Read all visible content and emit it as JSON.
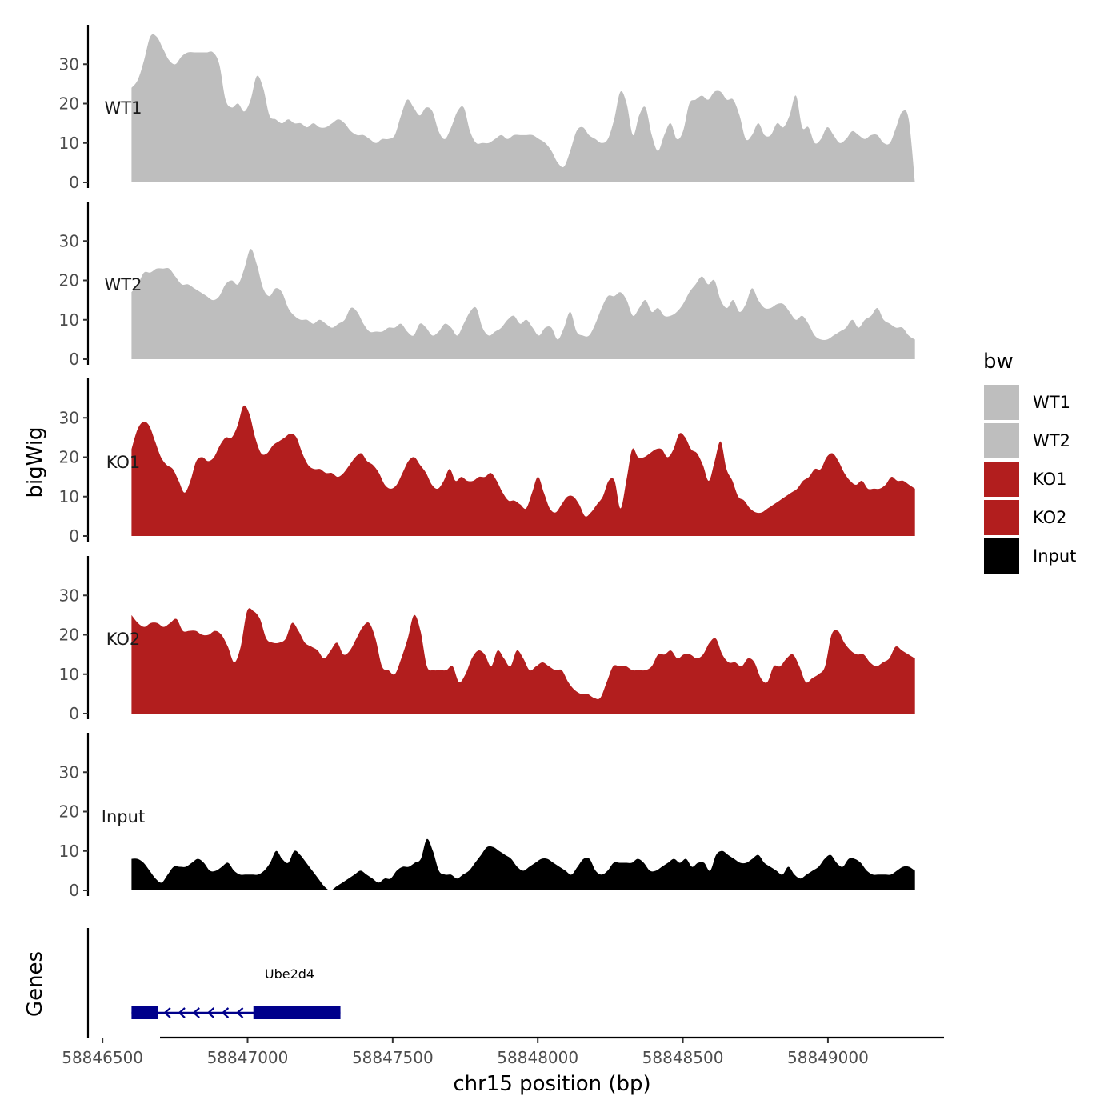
{
  "chart_data": {
    "type": "area",
    "ylabel": "bigWig",
    "xlabel": "chr15 position (bp)",
    "x_range": [
      58846600,
      58849300
    ],
    "xlim": [
      58846450,
      58849400
    ],
    "x_ticks": [
      58846500,
      58847000,
      58847500,
      58848000,
      58848500,
      58849000
    ],
    "x_tick_labels": [
      "58846500",
      "58847000",
      "58847500",
      "58848000",
      "58848500",
      "58849000"
    ],
    "ylim": [
      0,
      40
    ],
    "y_ticks": [
      0,
      10,
      20,
      30
    ],
    "y_tick_labels": [
      "0",
      "10",
      "20",
      "30"
    ],
    "legend": {
      "title": "bw",
      "position": "right",
      "entries": [
        {
          "label": "WT1",
          "color": "#bebebe"
        },
        {
          "label": "WT2",
          "color": "#bebebe"
        },
        {
          "label": "KO1",
          "color": "#b21e1e"
        },
        {
          "label": "KO2",
          "color": "#b21e1e"
        },
        {
          "label": "Input",
          "color": "#000000"
        }
      ]
    },
    "series": [
      {
        "name": "WT1",
        "color": "#bebebe",
        "values": [
          24,
          26,
          31,
          37,
          37,
          34,
          31,
          30,
          32,
          33,
          33,
          33,
          33,
          33,
          30,
          21,
          19,
          20,
          18,
          21,
          27,
          24,
          17,
          16,
          15,
          16,
          15,
          15,
          14,
          15,
          14,
          14,
          15,
          16,
          15,
          13,
          12,
          12,
          11,
          10,
          11,
          11,
          12,
          17,
          21,
          19,
          17,
          19,
          18,
          13,
          11,
          14,
          18,
          19,
          13,
          10,
          10,
          10,
          11,
          12,
          11,
          12,
          12,
          12,
          12,
          11,
          10,
          8,
          5,
          4,
          8,
          13,
          14,
          12,
          11,
          10,
          11,
          16,
          23,
          20,
          12,
          17,
          19,
          12,
          8,
          12,
          15,
          11,
          13,
          20,
          21,
          22,
          21,
          23,
          23,
          21,
          21,
          17,
          11,
          12,
          15,
          12,
          12,
          15,
          14,
          17,
          22,
          14,
          14,
          10,
          11,
          14,
          12,
          10,
          11,
          13,
          12,
          11,
          12,
          12,
          10,
          10,
          14,
          18,
          16,
          0
        ]
      },
      {
        "name": "WT2",
        "color": "#bebebe",
        "values": [
          17,
          19,
          22,
          22,
          23,
          23,
          23,
          21,
          19,
          19,
          18,
          17,
          16,
          15,
          16,
          19,
          20,
          19,
          23,
          28,
          24,
          18,
          16,
          18,
          17,
          13,
          11,
          10,
          10,
          9,
          10,
          9,
          8,
          9,
          10,
          13,
          12,
          9,
          7,
          7,
          7,
          8,
          8,
          9,
          7,
          6,
          9,
          8,
          6,
          7,
          9,
          8,
          6,
          9,
          12,
          13,
          8,
          6,
          7,
          8,
          10,
          11,
          9,
          10,
          8,
          6,
          8,
          8,
          5,
          8,
          12,
          7,
          6,
          6,
          9,
          13,
          16,
          16,
          17,
          15,
          11,
          13,
          15,
          12,
          13,
          11,
          11,
          12,
          14,
          17,
          19,
          21,
          19,
          20,
          15,
          13,
          15,
          12,
          14,
          18,
          15,
          13,
          13,
          14,
          14,
          12,
          10,
          11,
          9,
          6,
          5,
          5,
          6,
          7,
          8,
          10,
          8,
          10,
          11,
          13,
          10,
          9,
          8,
          8,
          6,
          5
        ]
      },
      {
        "name": "KO1",
        "color": "#b21e1e",
        "values": [
          22,
          27,
          29,
          28,
          24,
          20,
          18,
          17,
          14,
          11,
          14,
          19,
          20,
          19,
          20,
          23,
          25,
          25,
          28,
          33,
          31,
          25,
          21,
          21,
          23,
          24,
          25,
          26,
          25,
          21,
          18,
          17,
          17,
          16,
          16,
          15,
          16,
          18,
          20,
          21,
          19,
          18,
          16,
          13,
          12,
          13,
          16,
          19,
          20,
          18,
          16,
          13,
          12,
          14,
          17,
          14,
          15,
          14,
          14,
          15,
          15,
          16,
          14,
          11,
          9,
          9,
          8,
          7,
          11,
          15,
          11,
          7,
          6,
          8,
          10,
          10,
          8,
          5,
          6,
          8,
          10,
          14,
          14,
          7,
          14,
          22,
          20,
          20,
          21,
          22,
          22,
          20,
          22,
          26,
          25,
          22,
          21,
          18,
          14,
          19,
          24,
          17,
          14,
          10,
          9,
          7,
          6,
          6,
          7,
          8,
          9,
          10,
          11,
          12,
          14,
          15,
          17,
          17,
          20,
          21,
          19,
          16,
          14,
          13,
          14,
          12,
          12,
          12,
          13,
          15,
          14,
          14,
          13,
          12
        ]
      },
      {
        "name": "KO2",
        "color": "#b21e1e",
        "values": [
          25,
          23,
          22,
          23,
          23,
          22,
          23,
          24,
          21,
          21,
          21,
          20,
          20,
          21,
          20,
          17,
          13,
          17,
          26,
          26,
          24,
          19,
          18,
          18,
          19,
          23,
          21,
          18,
          17,
          16,
          14,
          16,
          18,
          15,
          16,
          19,
          22,
          23,
          19,
          12,
          11,
          10,
          14,
          19,
          25,
          21,
          12,
          11,
          11,
          11,
          12,
          8,
          10,
          14,
          16,
          15,
          12,
          16,
          14,
          12,
          16,
          14,
          11,
          12,
          13,
          12,
          11,
          11,
          8,
          6,
          5,
          5,
          4,
          4,
          8,
          12,
          12,
          12,
          11,
          11,
          11,
          12,
          15,
          15,
          16,
          14,
          15,
          15,
          14,
          15,
          18,
          19,
          15,
          13,
          13,
          12,
          14,
          13,
          9,
          8,
          12,
          12,
          14,
          15,
          12,
          8,
          9,
          10,
          12,
          20,
          21,
          18,
          16,
          15,
          15,
          13,
          12,
          13,
          14,
          17,
          16,
          15,
          14
        ]
      },
      {
        "name": "Input",
        "color": "#000000",
        "values": [
          8,
          8,
          7,
          5,
          3,
          2,
          4,
          6,
          6,
          6,
          7,
          8,
          7,
          5,
          5,
          6,
          7,
          5,
          4,
          4,
          4,
          4,
          5,
          7,
          10,
          8,
          7,
          10,
          9,
          7,
          5,
          3,
          1,
          0,
          1,
          2,
          3,
          4,
          5,
          4,
          3,
          2,
          3,
          3,
          5,
          6,
          6,
          7,
          8,
          13,
          10,
          5,
          4,
          4,
          3,
          4,
          5,
          7,
          9,
          11,
          11,
          10,
          9,
          8,
          6,
          5,
          6,
          7,
          8,
          8,
          7,
          6,
          5,
          4,
          6,
          8,
          8,
          5,
          4,
          5,
          7,
          7,
          7,
          7,
          8,
          7,
          5,
          5,
          6,
          7,
          8,
          7,
          8,
          6,
          7,
          7,
          5,
          9,
          10,
          9,
          8,
          7,
          7,
          8,
          9,
          7,
          6,
          5,
          4,
          6,
          4,
          3,
          4,
          5,
          6,
          8,
          9,
          7,
          6,
          8,
          8,
          7,
          5,
          4,
          4,
          4,
          4,
          5,
          6,
          6,
          5
        ]
      }
    ],
    "gene_track": {
      "ylabel": "Genes",
      "gene_name": "Ube2d4",
      "color": "#00008b",
      "strand": "-",
      "gene_start": 58846600,
      "gene_end": 58847320,
      "exons": [
        [
          58846600,
          58846690
        ],
        [
          58847020,
          58847320
        ]
      ],
      "arrow_positions": [
        58846720,
        58846770,
        58846820,
        58846870,
        58846920,
        58846970
      ]
    }
  }
}
